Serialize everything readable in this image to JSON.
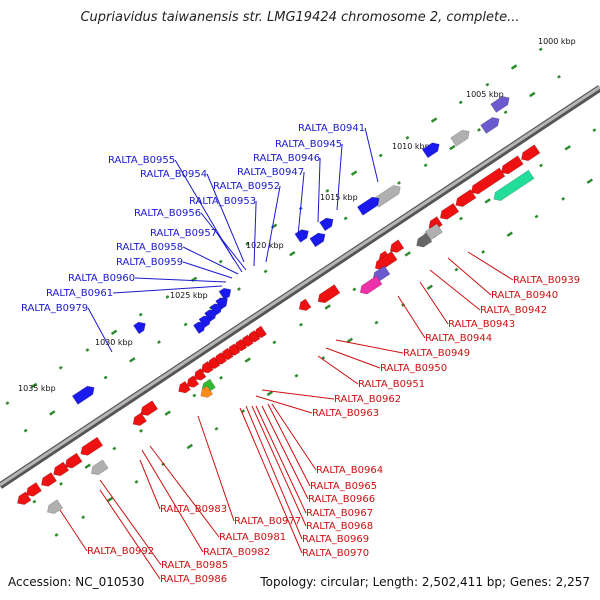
{
  "title": "Cupriavidus taiwanensis str. LMG19424 chromosome 2, complete...",
  "footer": {
    "accession": "Accession: NC_010530",
    "stats": "Topology: circular; Length: 2,502,411 bp; Genes: 2,257"
  },
  "colors": {
    "backbone": "#7a7a7a",
    "tick": "#2e8b2e",
    "plus_label": "#1a1acc",
    "minus_label": "#cc1111",
    "red": "#ee1111",
    "blue": "#1a1aee",
    "teal": "#22dd99",
    "grey": "#b0b0b0",
    "navy": "#6a5acd",
    "magenta": "#ee33aa",
    "orange": "#ff8c1a",
    "green": "#33bb33",
    "dark": "#666666"
  },
  "kbp_labels": [
    "1000 kbp",
    "1005 kbp",
    "1010 kbp",
    "1015 kbp",
    "1020 kbp",
    "1025 kbp",
    "1030 kbp",
    "1035 kbp"
  ],
  "plus_genes": [
    "RALTA_B0941",
    "RALTA_B0945",
    "RALTA_B0946",
    "RALTA_B0947",
    "RALTA_B0955",
    "RALTA_B0954",
    "RALTA_B0952",
    "RALTA_B0953",
    "RALTA_B0956",
    "RALTA_B0957",
    "RALTA_B0958",
    "RALTA_B0959",
    "RALTA_B0960",
    "RALTA_B0961",
    "RALTA_B0979"
  ],
  "minus_genes": [
    "RALTA_B0939",
    "RALTA_B0940",
    "RALTA_B0942",
    "RALTA_B0943",
    "RALTA_B0944",
    "RALTA_B0949",
    "RALTA_B0950",
    "RALTA_B0951",
    "RALTA_B0962",
    "RALTA_B0963",
    "RALTA_B0964",
    "RALTA_B0965",
    "RALTA_B0966",
    "RALTA_B0967",
    "RALTA_B0968",
    "RALTA_B0969",
    "RALTA_B0970",
    "RALTA_B0977",
    "RALTA_B0981",
    "RALTA_B0982",
    "RALTA_B0983",
    "RALTA_B0985",
    "RALTA_B0986",
    "RALTA_B0992"
  ]
}
